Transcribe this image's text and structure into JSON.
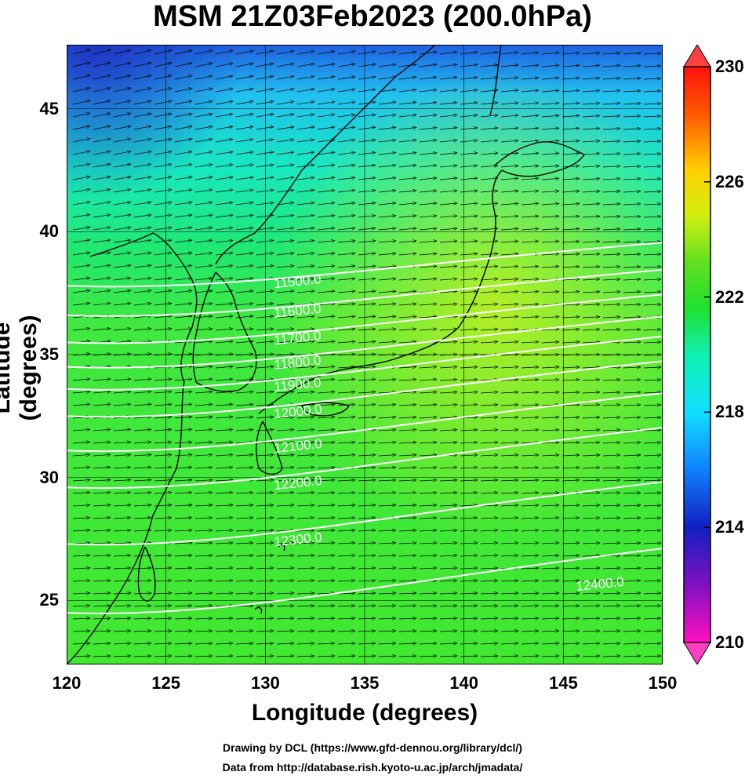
{
  "title": "MSM 21Z03Feb2023 (200.0hPa)",
  "xlabel": "Longitude (degrees)",
  "ylabel": "Latitude  (degrees)",
  "credits": [
    "Drawing by DCL (https://www.gfd-dennou.org/library/dcl/)",
    "Data from http://database.rish.kyoto-u.ac.jp/arch/jmadata/"
  ],
  "chart_data": {
    "type": "heatmap",
    "x_ticks": [
      "120",
      "125",
      "130",
      "135",
      "140",
      "145",
      "150"
    ],
    "y_ticks": [
      "25",
      "30",
      "35",
      "40",
      "45"
    ],
    "xlim": [
      120,
      150
    ],
    "ylim": [
      22.4,
      47.6
    ],
    "colorbar": {
      "ticks": [
        "210",
        "214",
        "218",
        "222",
        "226",
        "230"
      ],
      "range": [
        210,
        230
      ],
      "colors": [
        "#ff10c0",
        "#8010c0",
        "#1020c0",
        "#1080ff",
        "#10e0ff",
        "#10f0b0",
        "#20e030",
        "#60e020",
        "#d0f010",
        "#ffd000",
        "#ff6000",
        "#ff1010"
      ]
    },
    "contours": [
      {
        "label": "11500.0",
        "lat": 37.8
      },
      {
        "label": "11600.0",
        "lat": 36.6
      },
      {
        "label": "11700.0",
        "lat": 35.5
      },
      {
        "label": "11800.0",
        "lat": 34.5
      },
      {
        "label": "11900.0",
        "lat": 33.6
      },
      {
        "label": "12000.0",
        "lat": 32.5
      },
      {
        "label": "12100.0",
        "lat": 31.1
      },
      {
        "label": "12200.0",
        "lat": 29.6
      },
      {
        "label": "12300.0",
        "lat": 27.3
      },
      {
        "label": "12400.0",
        "lat": 24.5
      }
    ],
    "wind_field": "westerly",
    "grid": true
  }
}
